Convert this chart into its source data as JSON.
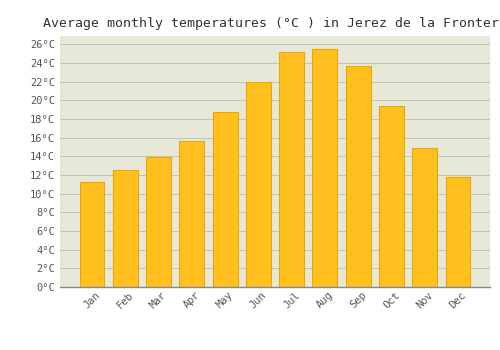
{
  "title": "Average monthly temperatures (°C ) in Jerez de la Frontera",
  "months": [
    "Jan",
    "Feb",
    "Mar",
    "Apr",
    "May",
    "Jun",
    "Jul",
    "Aug",
    "Sep",
    "Oct",
    "Nov",
    "Dec"
  ],
  "temperatures": [
    11.3,
    12.5,
    13.9,
    15.6,
    18.7,
    22.0,
    25.2,
    25.5,
    23.7,
    19.4,
    14.9,
    11.8
  ],
  "bar_color": "#FFC020",
  "bar_edge_color": "#E8A800",
  "plot_bg_color": "#E8E8D8",
  "fig_bg_color": "#FFFFFF",
  "grid_color": "#BBBBBB",
  "title_color": "#333333",
  "tick_color": "#555555",
  "ylim": [
    0,
    27
  ],
  "ytick_step": 2,
  "title_fontsize": 9.5,
  "tick_fontsize": 7.5,
  "font_family": "monospace"
}
